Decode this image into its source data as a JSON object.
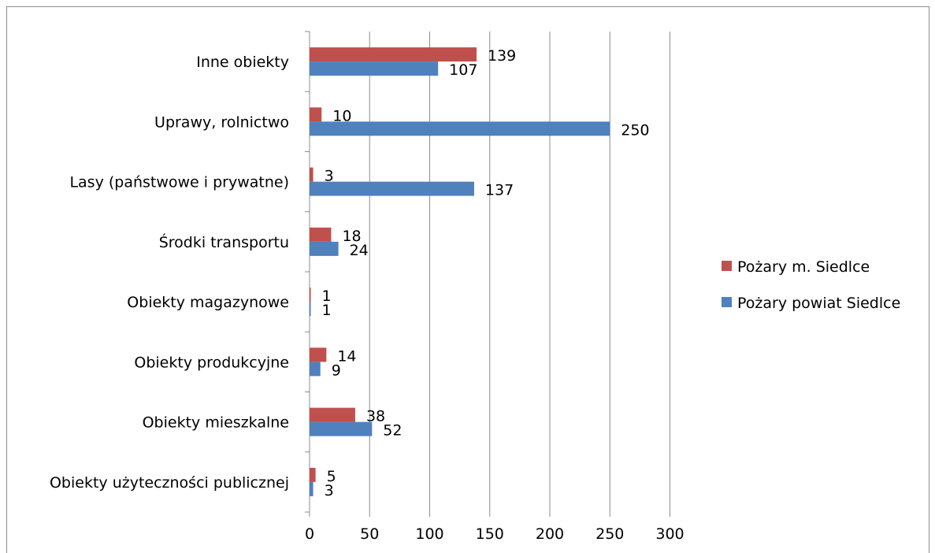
{
  "chart_data": {
    "type": "bar",
    "orientation": "horizontal",
    "categories": [
      "Obiekty użyteczności publicznej",
      "Obiekty mieszkalne",
      "Obiekty produkcyjne",
      "Obiekty magazynowe",
      "Środki transportu",
      "Lasy (państwowe i prywatne)",
      "Uprawy, rolnictwo",
      "Inne obiekty"
    ],
    "series": [
      {
        "name": "Pożary m. Siedlce",
        "color": "#c0504d",
        "values": [
          5,
          38,
          14,
          1,
          18,
          3,
          10,
          139
        ]
      },
      {
        "name": "Pożary powiat Siedlce",
        "color": "#4f81bd",
        "values": [
          3,
          52,
          9,
          1,
          24,
          137,
          250,
          107
        ]
      }
    ],
    "x_ticks": [
      "0",
      "50",
      "100",
      "150",
      "200",
      "250",
      "300"
    ],
    "xlim": [
      0,
      300
    ],
    "grid": "vertical",
    "legend": "right",
    "data_labels": true
  }
}
